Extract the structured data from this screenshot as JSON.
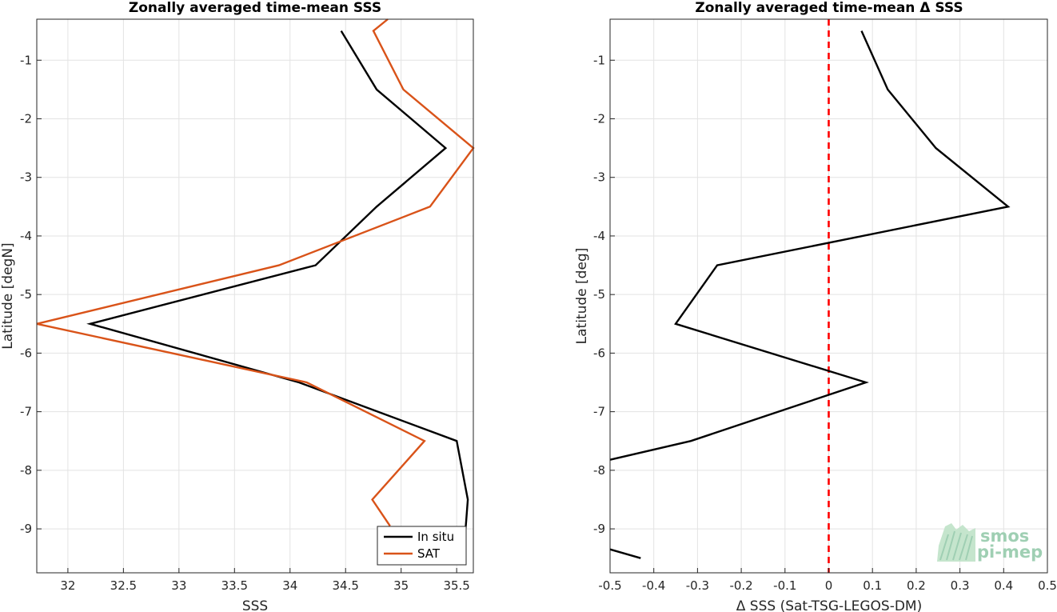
{
  "chart_data": [
    {
      "type": "line",
      "title": "Zonally averaged time-mean SSS",
      "xlabel": "SSS",
      "ylabel": "Latitude [degN]",
      "xlim": [
        31.72,
        35.65
      ],
      "ylim": [
        -9.75,
        -0.3
      ],
      "xticks": [
        "32",
        "32.5",
        "33",
        "33.5",
        "34",
        "34.5",
        "35",
        "35.5"
      ],
      "yticks": [
        "-1",
        "-2",
        "-3",
        "-4",
        "-5",
        "-6",
        "-7",
        "-8",
        "-9"
      ],
      "grid": true,
      "legend": "bottom-right",
      "series": [
        {
          "name": "In situ",
          "color": "#000000",
          "x": [
            34.46,
            34.78,
            35.4,
            34.78,
            34.23,
            32.2,
            34.08,
            35.5,
            35.6,
            35.56
          ],
          "y": [
            -0.5,
            -1.5,
            -2.5,
            -3.5,
            -4.5,
            -5.5,
            -6.5,
            -7.5,
            -8.5,
            -9.5
          ]
        },
        {
          "name": "SAT",
          "color": "#d95319",
          "x": [
            34.88,
            34.75,
            35.02,
            35.65,
            35.26,
            33.9,
            31.72,
            34.15,
            35.21,
            34.74,
            34.9
          ],
          "y": [
            -0.3,
            -0.5,
            -1.5,
            -2.5,
            -3.5,
            -4.5,
            -5.5,
            -6.5,
            -7.5,
            -8.5,
            -8.95
          ]
        }
      ]
    },
    {
      "type": "line",
      "title": "Zonally averaged time-mean Δ SSS",
      "xlabel": "Δ SSS (Sat-TSG-LEGOS-DM)",
      "ylabel": "Latitude [deg]",
      "xlim": [
        -0.5,
        0.5
      ],
      "ylim": [
        -9.75,
        -0.3
      ],
      "xticks": [
        "-0.5",
        "-0.4",
        "-0.3",
        "-0.2",
        "-0.1",
        "0",
        "0.1",
        "0.2",
        "0.3",
        "0.4",
        "0.5"
      ],
      "yticks": [
        "-1",
        "-2",
        "-3",
        "-4",
        "-5",
        "-6",
        "-7",
        "-8",
        "-9"
      ],
      "grid": true,
      "reference_line": {
        "x": 0,
        "color": "#ff0000",
        "style": "dashed"
      },
      "series": [
        {
          "color": "#000000",
          "segments": [
            {
              "x": [
                0.075,
                0.135,
                0.245,
                0.41,
                -0.255,
                -0.35,
                0.085,
                -0.315,
                -0.5
              ],
              "y": [
                -0.5,
                -1.5,
                -2.5,
                -3.5,
                -4.5,
                -5.5,
                -6.5,
                -7.5,
                -7.82
              ]
            },
            {
              "x": [
                -0.5,
                -0.43
              ],
              "y": [
                -9.35,
                -9.5
              ]
            }
          ]
        }
      ]
    }
  ],
  "logo": {
    "line1": "smos",
    "line2": "pi-mep"
  }
}
